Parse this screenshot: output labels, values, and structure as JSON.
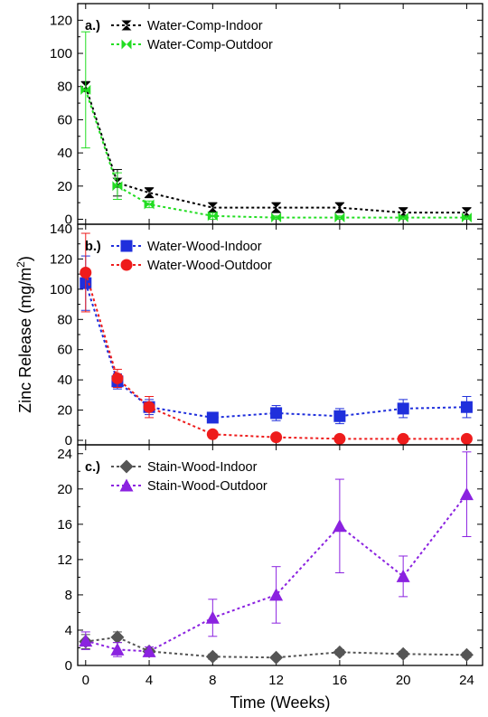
{
  "chart_data": {
    "type": "line",
    "xlabel": "Time (Weeks)",
    "ylabel": "Zinc Release (mg/m",
    "ylabel_sup": "2",
    "ylabel_close": ")",
    "x_ticks": [
      0,
      4,
      8,
      12,
      16,
      20,
      24
    ],
    "xlim": [
      -0.5,
      25
    ],
    "panels": [
      {
        "tag": "a.)",
        "ylim": [
          -3,
          130
        ],
        "y_ticks": [
          0,
          20,
          40,
          60,
          80,
          100,
          120
        ],
        "series": [
          {
            "name": "Water-Comp-Indoor",
            "color": "#000000",
            "marker": "bowtie",
            "x": [
              0,
              2,
              4,
              8,
              12,
              16,
              20,
              24
            ],
            "y": [
              80,
              22,
              16,
              7,
              7,
              7,
              4,
              4
            ],
            "err": [
              3,
              8,
              3,
              3,
              3,
              3,
              3,
              3
            ]
          },
          {
            "name": "Water-Comp-Outdoor",
            "color": "#22dd22",
            "marker": "bowtie-h",
            "x": [
              0,
              2,
              4,
              8,
              12,
              16,
              20,
              24
            ],
            "y": [
              78,
              20,
              9,
              2,
              1,
              1,
              1,
              1
            ],
            "err": [
              35,
              8,
              2,
              2,
              1,
              1,
              1,
              1
            ]
          }
        ]
      },
      {
        "tag": "b.)",
        "ylim": [
          -3,
          143
        ],
        "y_ticks": [
          0,
          20,
          40,
          60,
          80,
          100,
          120,
          140
        ],
        "series": [
          {
            "name": "Water-Wood-Indoor",
            "color": "#1f2fdc",
            "marker": "square",
            "x": [
              0,
              2,
              4,
              8,
              12,
              16,
              20,
              24
            ],
            "y": [
              104,
              39,
              22,
              15,
              18,
              16,
              21,
              22
            ],
            "err": [
              18,
              5,
              5,
              3,
              5,
              5,
              6,
              7
            ]
          },
          {
            "name": "Water-Wood-Outdoor",
            "color": "#ee1c1c",
            "marker": "circle",
            "x": [
              0,
              2,
              4,
              8,
              12,
              16,
              20,
              24
            ],
            "y": [
              111,
              41,
              22,
              4,
              2,
              1,
              1,
              1
            ],
            "err": [
              26,
              6,
              7,
              1,
              1,
              0.5,
              0.5,
              0.5
            ]
          }
        ]
      },
      {
        "tag": "c.)",
        "ylim": [
          0,
          25
        ],
        "y_ticks": [
          0,
          4,
          8,
          12,
          16,
          20,
          24
        ],
        "series": [
          {
            "name": "Stain-Wood-Indoor",
            "color": "#555555",
            "marker": "diamond",
            "x": [
              0,
              2,
              4,
              8,
              12,
              16,
              20,
              24
            ],
            "y": [
              2.7,
              3.2,
              1.6,
              1.0,
              0.9,
              1.5,
              1.3,
              1.2
            ],
            "err": [
              0.8,
              0.6,
              0.3,
              0.3,
              0.2,
              0.3,
              0.3,
              0.3
            ]
          },
          {
            "name": "Stain-Wood-Outdoor",
            "color": "#8b22e0",
            "marker": "triangle",
            "x": [
              0,
              2,
              4,
              8,
              12,
              16,
              20,
              24
            ],
            "y": [
              2.8,
              1.8,
              1.6,
              5.4,
              8.0,
              15.8,
              10.1,
              19.4
            ],
            "err": [
              1.0,
              0.8,
              0.5,
              2.1,
              3.2,
              5.3,
              2.3,
              4.8
            ]
          }
        ]
      }
    ]
  }
}
